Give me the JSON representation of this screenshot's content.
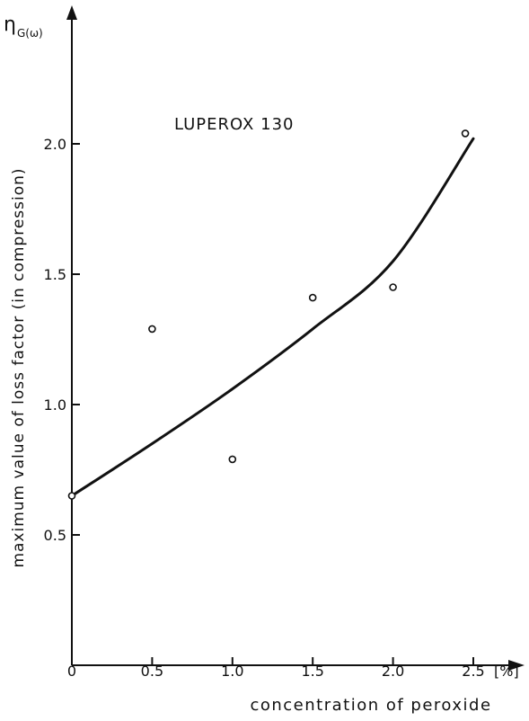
{
  "chart_data": {
    "type": "scatter",
    "title": "LUPEROX 130",
    "ylabel": "maximum value of loss factor (in compression)",
    "y_symbol": "η",
    "y_symbol_sub": "G(ω)",
    "xlabel": "concentration of peroxide",
    "x_unit": "[%]",
    "xlim": [
      0,
      2.5
    ],
    "ylim": [
      0,
      2.5
    ],
    "x_ticks": [
      0,
      0.5,
      1.0,
      1.5,
      2.0,
      2.5
    ],
    "x_tick_labels": [
      "0",
      "0.5",
      "1.0",
      "1.5",
      "2.0",
      "2.5"
    ],
    "y_ticks": [
      0.5,
      1.0,
      1.5,
      2.0
    ],
    "y_tick_labels": [
      "0.5",
      "1.0",
      "1.5",
      "2.0"
    ],
    "grid": false,
    "series": [
      {
        "kind": "points",
        "x": [
          0,
          0.5,
          1.0,
          1.5,
          2.0,
          2.45
        ],
        "y": [
          0.65,
          1.29,
          0.79,
          1.41,
          1.45,
          2.04
        ]
      },
      {
        "kind": "fit-curve",
        "x": [
          0,
          0.5,
          1.0,
          1.5,
          2.0,
          2.5
        ],
        "y": [
          0.65,
          0.85,
          1.06,
          1.29,
          1.55,
          2.02
        ]
      }
    ]
  }
}
